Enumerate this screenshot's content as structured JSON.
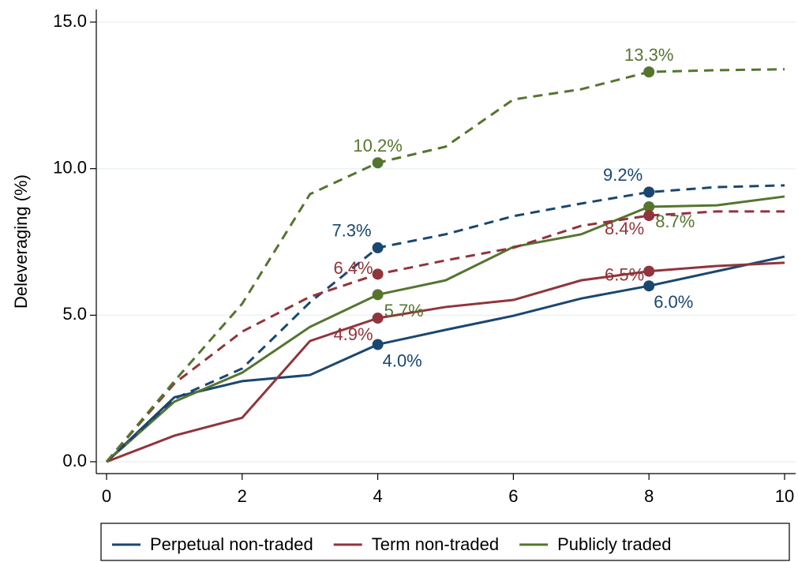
{
  "chart_data": {
    "type": "line",
    "y_label": "Deleveraging (%)",
    "x": [
      0,
      1,
      2,
      3,
      4,
      5,
      6,
      7,
      8,
      9,
      10
    ],
    "xlim": [
      0,
      10
    ],
    "xticks": [
      0,
      2,
      4,
      6,
      8,
      10
    ],
    "ylim": [
      0,
      15
    ],
    "yticks": [
      {
        "value": 0,
        "label": "0.0"
      },
      {
        "value": 5,
        "label": "5.0"
      },
      {
        "value": 10,
        "label": "10.0"
      },
      {
        "value": 15,
        "label": "15.0"
      }
    ],
    "grid": true,
    "legend": "bottom",
    "series": [
      {
        "name": "Perpetual non-traded",
        "color": "#1a476f",
        "style": "solid",
        "values": [
          0,
          2.2,
          2.75,
          2.96,
          4.0,
          4.5,
          4.98,
          5.57,
          6.0,
          6.5,
          7.0
        ],
        "value_labels": [
          null,
          null,
          null,
          null,
          "4.0%",
          null,
          null,
          null,
          "6.0%",
          null,
          null
        ]
      },
      {
        "name": "Term non-traded",
        "color": "#90353b",
        "style": "solid",
        "values": [
          0,
          0.89,
          1.5,
          4.12,
          4.9,
          5.28,
          5.52,
          6.19,
          6.5,
          6.68,
          6.79
        ],
        "value_labels": [
          null,
          null,
          null,
          null,
          "4.9%",
          null,
          null,
          null,
          "6.5%",
          null,
          null
        ]
      },
      {
        "name": "Publicly traded",
        "color": "#55752f",
        "style": "solid",
        "values": [
          0,
          2.05,
          3.04,
          4.6,
          5.7,
          6.19,
          7.33,
          7.76,
          8.7,
          8.75,
          9.05
        ],
        "value_labels": [
          null,
          null,
          null,
          null,
          "5.7%",
          null,
          null,
          null,
          "8.7%",
          null,
          null
        ]
      },
      {
        "color": "#1a476f",
        "style": "dashed",
        "values": [
          0,
          2.15,
          3.18,
          5.44,
          7.3,
          7.76,
          8.38,
          8.81,
          9.2,
          9.37,
          9.43
        ],
        "value_labels": [
          null,
          null,
          null,
          null,
          "7.3%",
          null,
          null,
          null,
          "9.2%",
          null,
          null
        ]
      },
      {
        "color": "#90353b",
        "style": "dashed",
        "values": [
          0,
          2.67,
          4.44,
          5.63,
          6.4,
          6.87,
          7.3,
          8.05,
          8.4,
          8.54,
          8.54
        ],
        "value_labels": [
          null,
          null,
          null,
          null,
          "6.4%",
          null,
          null,
          null,
          "8.4%",
          null,
          null
        ]
      },
      {
        "color": "#55752f",
        "style": "dashed",
        "values": [
          0,
          2.75,
          5.39,
          9.13,
          10.2,
          10.75,
          12.36,
          12.71,
          13.3,
          13.36,
          13.39
        ],
        "value_labels": [
          null,
          null,
          null,
          null,
          "10.2%",
          null,
          null,
          null,
          "13.3%",
          null,
          null
        ]
      }
    ]
  }
}
